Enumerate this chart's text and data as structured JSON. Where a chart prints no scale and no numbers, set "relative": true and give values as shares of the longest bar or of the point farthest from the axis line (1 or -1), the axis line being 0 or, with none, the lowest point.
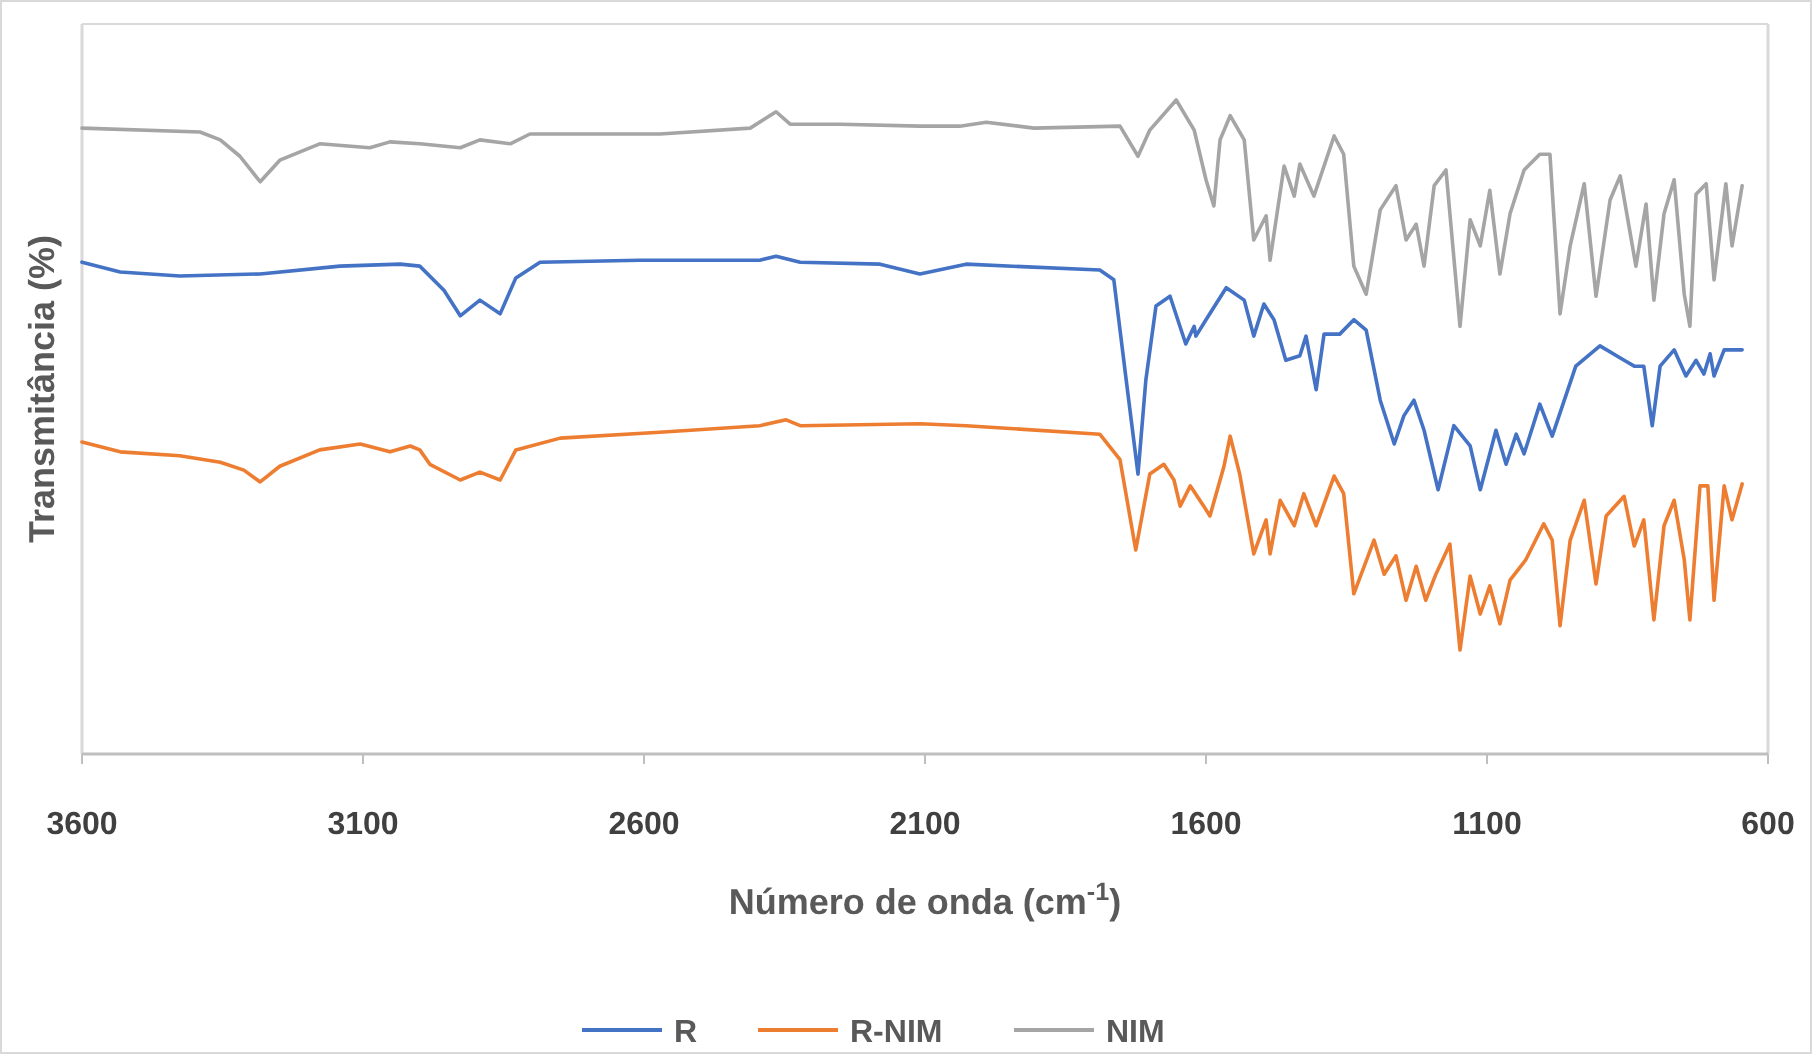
{
  "chart_data": {
    "type": "line",
    "xlabel": "Número de onda (cm$^{-1}$)",
    "ylabel": "Transmitância (%)",
    "relative": true,
    "xlim": [
      3600,
      600
    ],
    "xticks": [
      3600,
      3100,
      2600,
      2100,
      1600,
      1100,
      600
    ],
    "grid": false,
    "legend": "bottom",
    "line_style": "solid",
    "series": [
      {
        "name": "R",
        "color": "#4472c4",
        "x": [
          3600,
          3532,
          3426,
          3283,
          3141,
          3034,
          2999,
          2956,
          2927,
          2892,
          2856,
          2828,
          2785,
          2607,
          2394,
          2365,
          2322,
          2180,
          2109,
          2027,
          1789,
          1764,
          1742,
          1721,
          1707,
          1689,
          1664,
          1636,
          1621,
          1618,
          1600,
          1564,
          1532,
          1515,
          1497,
          1479,
          1458,
          1433,
          1422,
          1404,
          1390,
          1362,
          1337,
          1315,
          1290,
          1265,
          1248,
          1230,
          1212,
          1187,
          1159,
          1130,
          1112,
          1084,
          1066,
          1048,
          1034,
          1006,
          984,
          942,
          899,
          856,
          838,
          821,
          806,
          792,
          767,
          746,
          728,
          714,
          703,
          696,
          678,
          646
        ],
        "values": [
          0.752,
          0.737,
          0.731,
          0.734,
          0.746,
          0.749,
          0.746,
          0.709,
          0.67,
          0.694,
          0.673,
          0.728,
          0.752,
          0.755,
          0.755,
          0.761,
          0.752,
          0.749,
          0.734,
          0.749,
          0.74,
          0.725,
          0.572,
          0.428,
          0.572,
          0.685,
          0.7,
          0.627,
          0.654,
          0.639,
          0.664,
          0.713,
          0.694,
          0.639,
          0.688,
          0.664,
          0.602,
          0.609,
          0.639,
          0.557,
          0.642,
          0.642,
          0.664,
          0.648,
          0.541,
          0.474,
          0.517,
          0.541,
          0.495,
          0.404,
          0.502,
          0.471,
          0.404,
          0.495,
          0.443,
          0.489,
          0.459,
          0.535,
          0.486,
          0.593,
          0.624,
          0.602,
          0.593,
          0.593,
          0.502,
          0.593,
          0.618,
          0.578,
          0.602,
          0.581,
          0.612,
          0.578,
          0.618,
          0.618
        ]
      },
      {
        "name": "R-NIM",
        "color": "#ed7d31",
        "x": [
          3600,
          3532,
          3426,
          3354,
          3312,
          3283,
          3248,
          3177,
          3105,
          3052,
          3016,
          2999,
          2981,
          2927,
          2892,
          2856,
          2828,
          2749,
          2572,
          2394,
          2347,
          2322,
          2109,
          2027,
          1789,
          1753,
          1725,
          1700,
          1675,
          1657,
          1646,
          1628,
          1604,
          1593,
          1568,
          1557,
          1540,
          1515,
          1493,
          1486,
          1468,
          1443,
          1426,
          1404,
          1372,
          1355,
          1337,
          1301,
          1283,
          1262,
          1244,
          1226,
          1209,
          1191,
          1166,
          1148,
          1130,
          1112,
          1095,
          1077,
          1059,
          1031,
          999,
          984,
          970,
          952,
          927,
          906,
          888,
          856,
          838,
          821,
          803,
          785,
          767,
          749,
          739,
          721,
          707,
          696,
          678,
          664,
          646
        ],
        "values": [
          0.477,
          0.462,
          0.456,
          0.446,
          0.434,
          0.416,
          0.44,
          0.465,
          0.474,
          0.462,
          0.471,
          0.465,
          0.443,
          0.419,
          0.431,
          0.419,
          0.465,
          0.483,
          0.492,
          0.502,
          0.511,
          0.502,
          0.505,
          0.502,
          0.489,
          0.45,
          0.312,
          0.428,
          0.443,
          0.419,
          0.379,
          0.41,
          0.379,
          0.364,
          0.44,
          0.486,
          0.428,
          0.306,
          0.358,
          0.306,
          0.388,
          0.349,
          0.398,
          0.349,
          0.425,
          0.398,
          0.245,
          0.327,
          0.275,
          0.303,
          0.235,
          0.287,
          0.235,
          0.275,
          0.321,
          0.159,
          0.272,
          0.214,
          0.257,
          0.199,
          0.266,
          0.297,
          0.352,
          0.327,
          0.196,
          0.327,
          0.388,
          0.26,
          0.364,
          0.394,
          0.318,
          0.358,
          0.205,
          0.349,
          0.388,
          0.297,
          0.205,
          0.41,
          0.41,
          0.235,
          0.41,
          0.358,
          0.413
        ]
      },
      {
        "name": "NIM",
        "color": "#a5a5a5",
        "x": [
          3600,
          3390,
          3354,
          3319,
          3283,
          3248,
          3177,
          3088,
          3052,
          2999,
          2927,
          2892,
          2838,
          2803,
          2678,
          2572,
          2411,
          2365,
          2340,
          2251,
          2109,
          2038,
          1991,
          1906,
          1753,
          1721,
          1700,
          1653,
          1621,
          1600,
          1586,
          1575,
          1557,
          1532,
          1515,
          1493,
          1486,
          1461,
          1443,
          1433,
          1408,
          1372,
          1355,
          1337,
          1315,
          1290,
          1262,
          1244,
          1226,
          1212,
          1194,
          1173,
          1148,
          1130,
          1112,
          1095,
          1077,
          1059,
          1034,
          1006,
          988,
          970,
          952,
          927,
          906,
          881,
          863,
          835,
          817,
          803,
          785,
          767,
          749,
          739,
          728,
          710,
          696,
          675,
          664,
          646
        ],
        "values": [
          0.957,
          0.951,
          0.939,
          0.914,
          0.875,
          0.908,
          0.933,
          0.927,
          0.936,
          0.933,
          0.927,
          0.939,
          0.933,
          0.948,
          0.948,
          0.948,
          0.957,
          0.982,
          0.963,
          0.963,
          0.96,
          0.96,
          0.966,
          0.957,
          0.96,
          0.914,
          0.954,
          1.0,
          0.954,
          0.878,
          0.838,
          0.939,
          0.976,
          0.939,
          0.786,
          0.823,
          0.755,
          0.899,
          0.853,
          0.902,
          0.853,
          0.945,
          0.917,
          0.746,
          0.703,
          0.832,
          0.869,
          0.786,
          0.81,
          0.746,
          0.869,
          0.893,
          0.654,
          0.817,
          0.777,
          0.862,
          0.734,
          0.826,
          0.893,
          0.917,
          0.917,
          0.673,
          0.777,
          0.872,
          0.7,
          0.847,
          0.884,
          0.746,
          0.841,
          0.694,
          0.826,
          0.878,
          0.703,
          0.654,
          0.856,
          0.872,
          0.725,
          0.872,
          0.777,
          0.869
        ]
      }
    ]
  }
}
